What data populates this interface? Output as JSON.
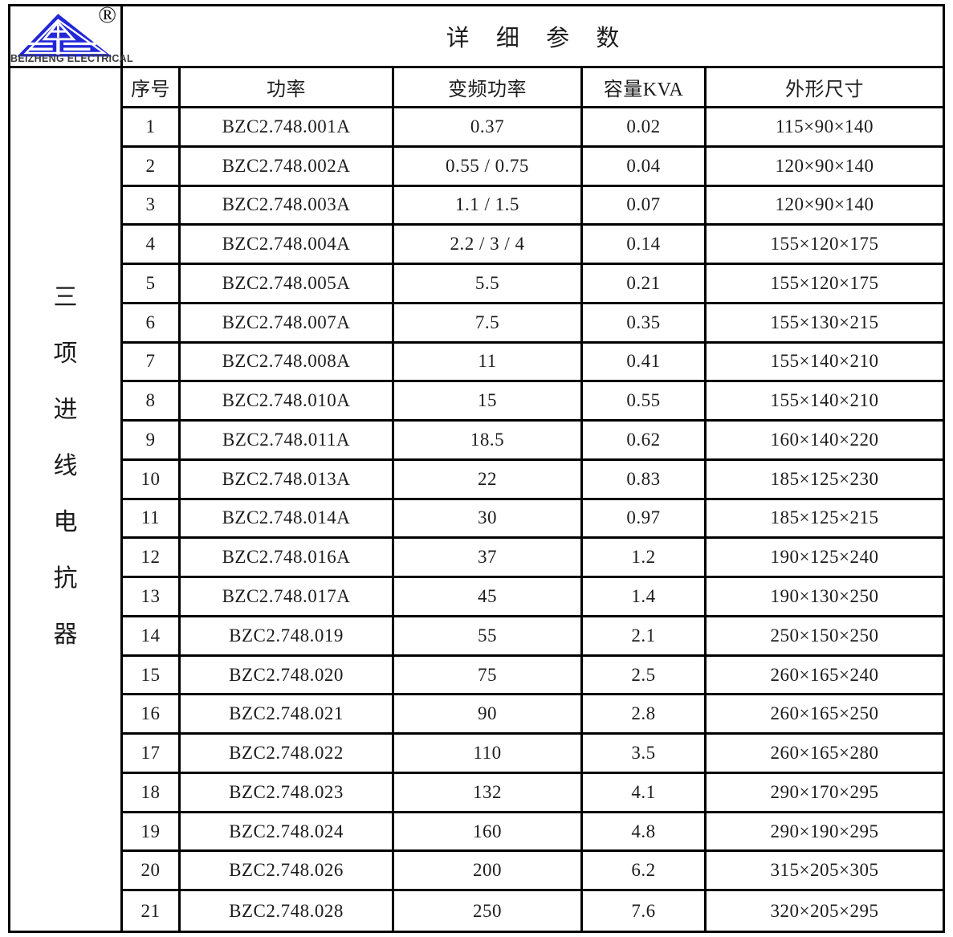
{
  "logo": {
    "brand": "BEIZHENG ELECTRICAL",
    "registered_mark": "®",
    "icon": "beizheng-triangle-logo",
    "color": "#2227d8"
  },
  "sidebar": {
    "vertical_label": "三项进线电抗器",
    "chars": [
      "三",
      "项",
      "进",
      "线",
      "电",
      "抗",
      "器"
    ]
  },
  "header": {
    "title": "详 细 参 数"
  },
  "table": {
    "columns": [
      "序号",
      "功率",
      "变频功率",
      "容量KVA",
      "外形尺寸"
    ],
    "rows": [
      [
        "1",
        "BZC2.748.001A",
        "0.37",
        "0.02",
        "115×90×140"
      ],
      [
        "2",
        "BZC2.748.002A",
        "0.55 / 0.75",
        "0.04",
        "120×90×140"
      ],
      [
        "3",
        "BZC2.748.003A",
        "1.1 / 1.5",
        "0.07",
        "120×90×140"
      ],
      [
        "4",
        "BZC2.748.004A",
        "2.2 / 3 / 4",
        "0.14",
        "155×120×175"
      ],
      [
        "5",
        "BZC2.748.005A",
        "5.5",
        "0.21",
        "155×120×175"
      ],
      [
        "6",
        "BZC2.748.007A",
        "7.5",
        "0.35",
        "155×130×215"
      ],
      [
        "7",
        "BZC2.748.008A",
        "11",
        "0.41",
        "155×140×210"
      ],
      [
        "8",
        "BZC2.748.010A",
        "15",
        "0.55",
        "155×140×210"
      ],
      [
        "9",
        "BZC2.748.011A",
        "18.5",
        "0.62",
        "160×140×220"
      ],
      [
        "10",
        "BZC2.748.013A",
        "22",
        "0.83",
        "185×125×230"
      ],
      [
        "11",
        "BZC2.748.014A",
        "30",
        "0.97",
        "185×125×215"
      ],
      [
        "12",
        "BZC2.748.016A",
        "37",
        "1.2",
        "190×125×240"
      ],
      [
        "13",
        "BZC2.748.017A",
        "45",
        "1.4",
        "190×130×250"
      ],
      [
        "14",
        "BZC2.748.019",
        "55",
        "2.1",
        "250×150×250"
      ],
      [
        "15",
        "BZC2.748.020",
        "75",
        "2.5",
        "260×165×240"
      ],
      [
        "16",
        "BZC2.748.021",
        "90",
        "2.8",
        "260×165×250"
      ],
      [
        "17",
        "BZC2.748.022",
        "110",
        "3.5",
        "260×165×280"
      ],
      [
        "18",
        "BZC2.748.023",
        "132",
        "4.1",
        "290×170×295"
      ],
      [
        "19",
        "BZC2.748.024",
        "160",
        "4.8",
        "290×190×295"
      ],
      [
        "20",
        "BZC2.748.026",
        "200",
        "6.2",
        "315×205×305"
      ],
      [
        "21",
        "BZC2.748.028",
        "250",
        "7.6",
        "320×205×295"
      ]
    ]
  }
}
